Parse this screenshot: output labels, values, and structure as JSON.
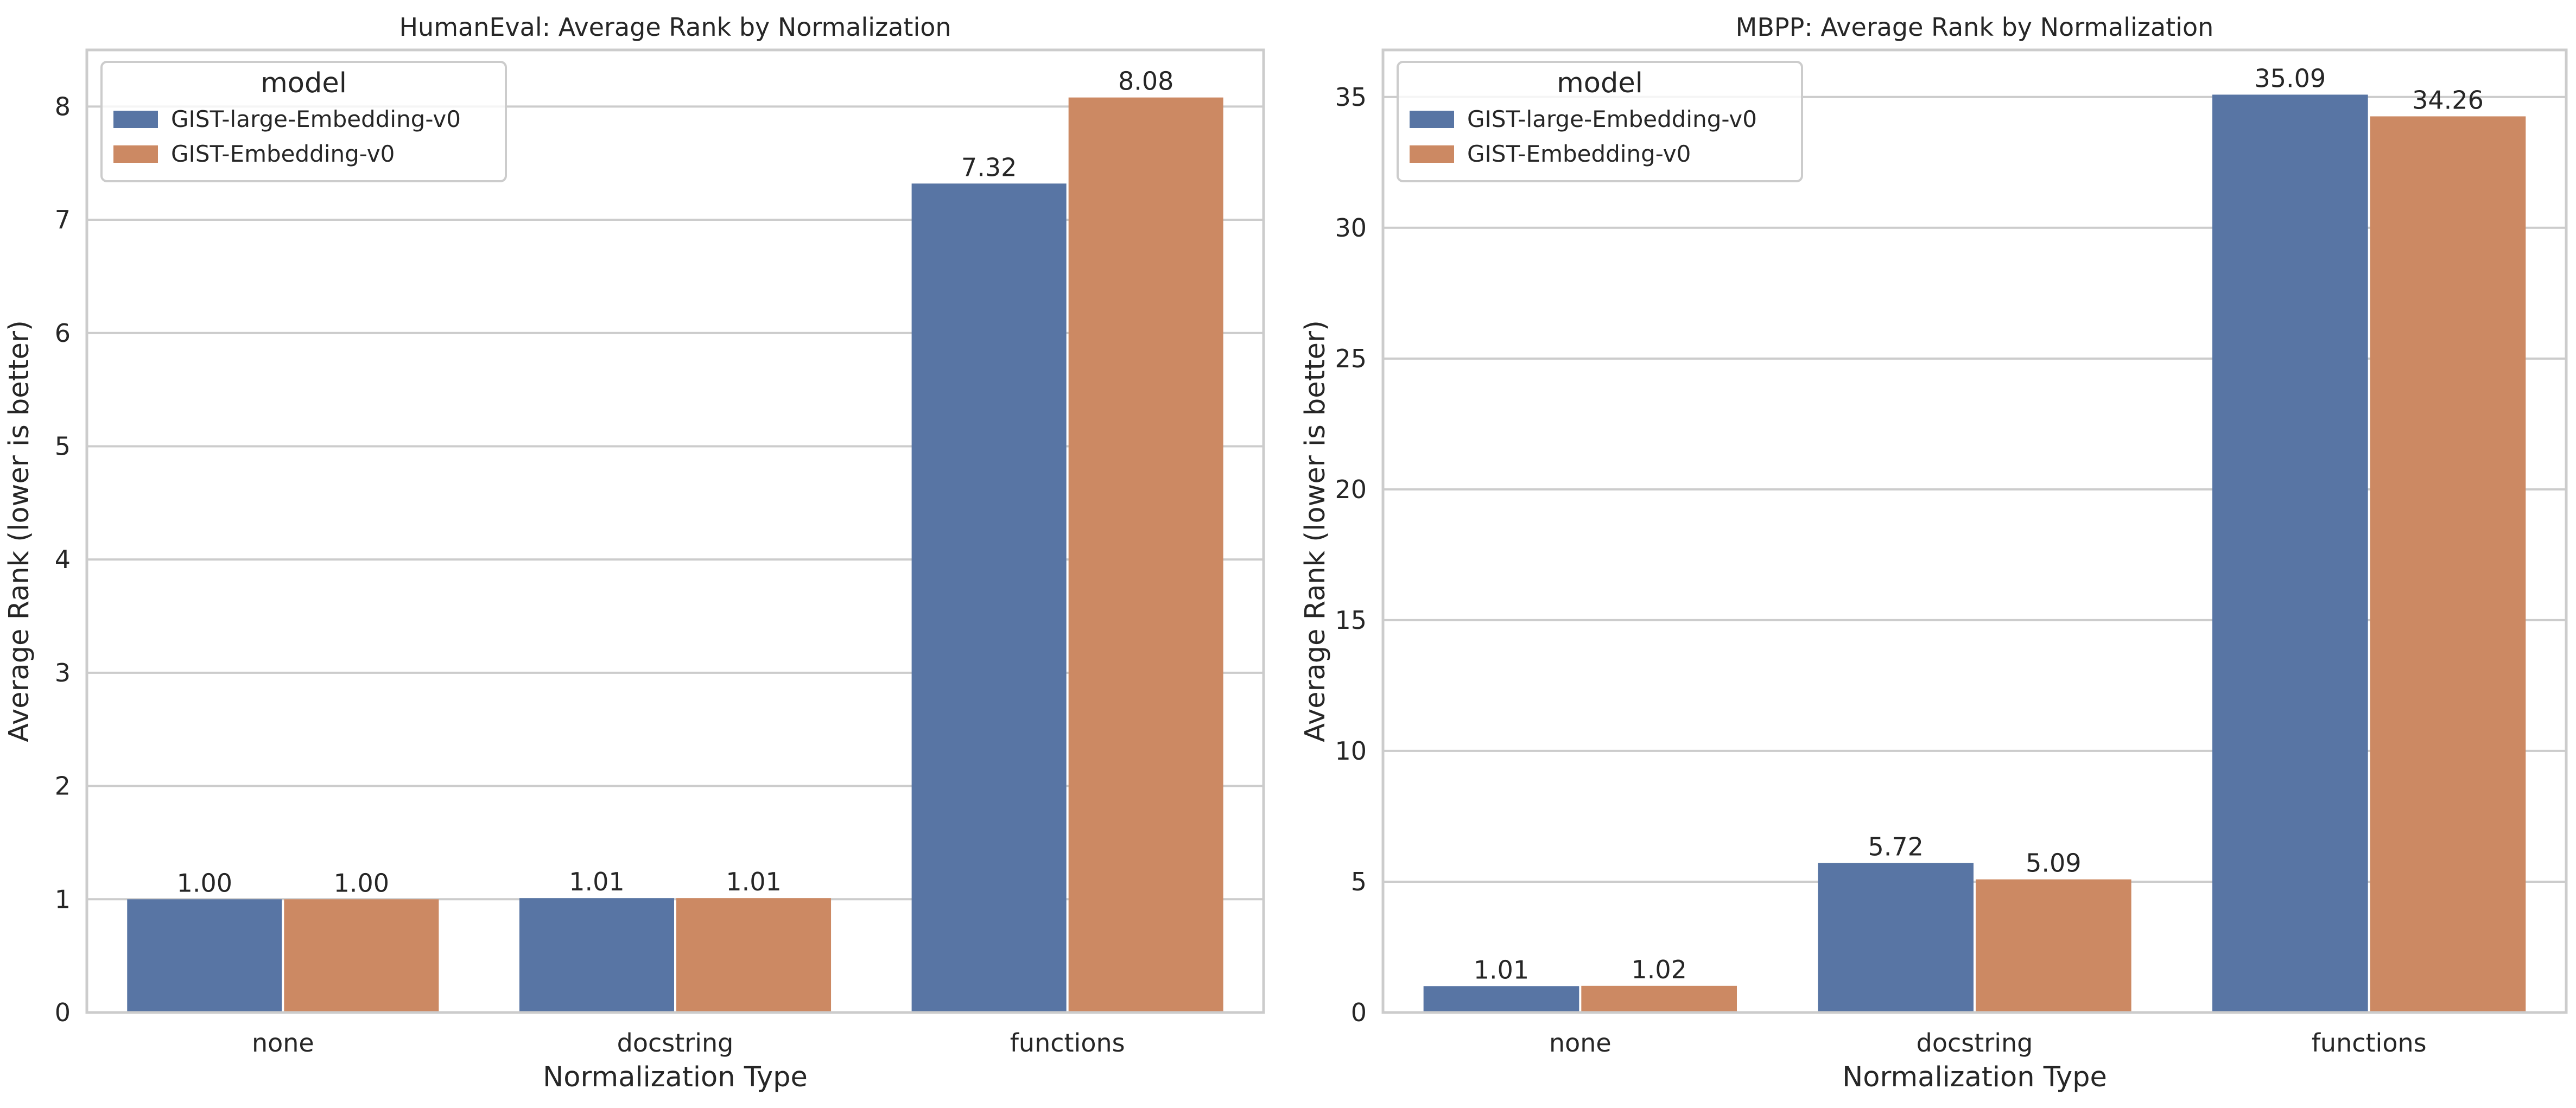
{
  "colors": {
    "GIST-large-Embedding-v0": "#5875a4",
    "GIST-Embedding-v0": "#cc8963"
  },
  "chart_data": [
    {
      "type": "bar",
      "title": "HumanEval: Average Rank by Normalization",
      "xlabel": "Normalization Type",
      "ylabel": "Average Rank (lower is better)",
      "categories": [
        "none",
        "docstring",
        "functions"
      ],
      "ylim": [
        0,
        8.5
      ],
      "yticks": [
        0,
        1,
        2,
        3,
        4,
        5,
        6,
        7,
        8
      ],
      "grid": "horizontal",
      "legend": {
        "title": "model",
        "placement": "upper-left",
        "entries": [
          "GIST-large-Embedding-v0",
          "GIST-Embedding-v0"
        ]
      },
      "series": [
        {
          "name": "GIST-large-Embedding-v0",
          "values": [
            1.0,
            1.01,
            7.32
          ],
          "labels": [
            "1.00",
            "1.01",
            "7.32"
          ]
        },
        {
          "name": "GIST-Embedding-v0",
          "values": [
            1.0,
            1.01,
            8.08
          ],
          "labels": [
            "1.00",
            "1.01",
            "8.08"
          ]
        }
      ]
    },
    {
      "type": "bar",
      "title": "MBPP: Average Rank by Normalization",
      "xlabel": "Normalization Type",
      "ylabel": "Average Rank (lower is better)",
      "categories": [
        "none",
        "docstring",
        "functions"
      ],
      "ylim": [
        0,
        36.8
      ],
      "yticks": [
        0,
        5,
        10,
        15,
        20,
        25,
        30,
        35
      ],
      "grid": "horizontal",
      "legend": {
        "title": "model",
        "placement": "upper-left",
        "entries": [
          "GIST-large-Embedding-v0",
          "GIST-Embedding-v0"
        ]
      },
      "series": [
        {
          "name": "GIST-large-Embedding-v0",
          "values": [
            1.01,
            5.72,
            35.09
          ],
          "labels": [
            "1.01",
            "5.72",
            "35.09"
          ]
        },
        {
          "name": "GIST-Embedding-v0",
          "values": [
            1.02,
            5.09,
            34.26
          ],
          "labels": [
            "1.02",
            "5.09",
            "34.26"
          ]
        }
      ]
    }
  ]
}
